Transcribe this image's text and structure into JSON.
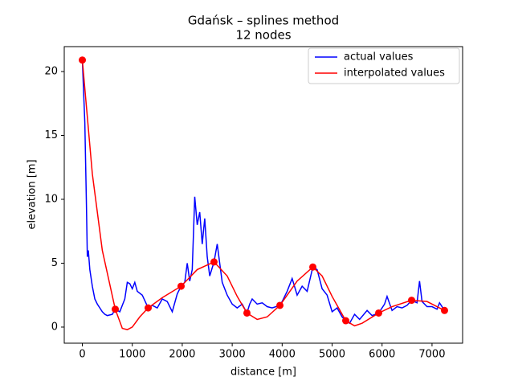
{
  "chart_data": {
    "type": "line",
    "title": "Gdańsk – splines method",
    "subtitle": "12 nodes",
    "x_label": "distance [m]",
    "y_label": "elevation [m]",
    "xlim": [
      -362,
      7612
    ],
    "ylim": [
      -1.26,
      21.95
    ],
    "xticks": [
      0,
      1000,
      2000,
      3000,
      4000,
      5000,
      6000,
      7000
    ],
    "yticks": [
      0,
      5,
      10,
      15,
      20
    ],
    "legend": "upper right",
    "series": [
      {
        "name": "actual values",
        "color": "#0000ff",
        "x": [
          0,
          50,
          80,
          100,
          120,
          150,
          200,
          250,
          300,
          350,
          400,
          450,
          500,
          600,
          659,
          750,
          850,
          900,
          950,
          1000,
          1050,
          1100,
          1200,
          1318,
          1400,
          1500,
          1600,
          1700,
          1800,
          1900,
          1977,
          2050,
          2100,
          2150,
          2200,
          2250,
          2300,
          2350,
          2400,
          2450,
          2500,
          2550,
          2636,
          2700,
          2750,
          2800,
          2900,
          3000,
          3100,
          3200,
          3295,
          3350,
          3400,
          3500,
          3600,
          3700,
          3800,
          3955,
          4000,
          4100,
          4200,
          4300,
          4400,
          4500,
          4614,
          4700,
          4800,
          4900,
          5000,
          5100,
          5200,
          5273,
          5350,
          5450,
          5550,
          5700,
          5800,
          5932,
          6050,
          6100,
          6200,
          6300,
          6400,
          6500,
          6591,
          6700,
          6750,
          6800,
          6900,
          7000,
          7100,
          7150,
          7250
        ],
        "values": [
          20.9,
          16,
          10,
          5.5,
          6,
          4.5,
          3.2,
          2.2,
          1.8,
          1.5,
          1.2,
          1.0,
          0.9,
          1.0,
          1.4,
          1.2,
          2.2,
          3.5,
          3.4,
          3.0,
          3.5,
          2.8,
          2.5,
          1.5,
          1.7,
          1.5,
          2.2,
          2.0,
          1.2,
          2.6,
          3.2,
          3.5,
          5.0,
          3.6,
          4.5,
          10.2,
          8.0,
          9.0,
          6.5,
          8.5,
          5.5,
          4.0,
          5.1,
          6.5,
          5.0,
          3.5,
          2.5,
          1.8,
          1.5,
          1.8,
          1.1,
          1.8,
          2.2,
          1.8,
          1.9,
          1.6,
          1.5,
          1.7,
          2.0,
          2.8,
          3.8,
          2.5,
          3.2,
          2.8,
          4.7,
          4.5,
          3.0,
          2.5,
          1.2,
          1.5,
          0.8,
          0.5,
          0.3,
          1.0,
          0.6,
          1.3,
          0.9,
          1.1,
          1.8,
          2.4,
          1.3,
          1.6,
          1.5,
          1.7,
          2.1,
          1.9,
          3.6,
          2.0,
          1.6,
          1.6,
          1.4,
          1.9,
          1.3
        ]
      },
      {
        "name": "interpolated values",
        "color": "#ff0000",
        "x": [
          0,
          200,
          400,
          659,
          800,
          900,
          1000,
          1150,
          1318,
          1600,
          1977,
          2300,
          2636,
          2900,
          3100,
          3295,
          3500,
          3700,
          3955,
          4300,
          4614,
          4800,
          5000,
          5273,
          5450,
          5600,
          5932,
          6200,
          6591,
          6900,
          7250
        ],
        "values": [
          20.9,
          12,
          6,
          1.4,
          -0.1,
          -0.2,
          0.0,
          0.8,
          1.5,
          2.3,
          3.2,
          4.5,
          5.1,
          4.0,
          2.4,
          1.1,
          0.6,
          0.8,
          1.7,
          3.6,
          4.7,
          4.0,
          2.4,
          0.5,
          0.1,
          0.3,
          1.1,
          1.6,
          2.1,
          2.0,
          1.3
        ]
      }
    ],
    "nodes": {
      "color": "#ff0000",
      "x": [
        0,
        659,
        1318,
        1977,
        2636,
        3295,
        3955,
        4614,
        5273,
        5932,
        6591,
        7250
      ],
      "values": [
        20.9,
        1.4,
        1.5,
        3.2,
        5.1,
        1.1,
        1.7,
        4.7,
        0.5,
        1.1,
        2.1,
        1.3
      ]
    }
  }
}
